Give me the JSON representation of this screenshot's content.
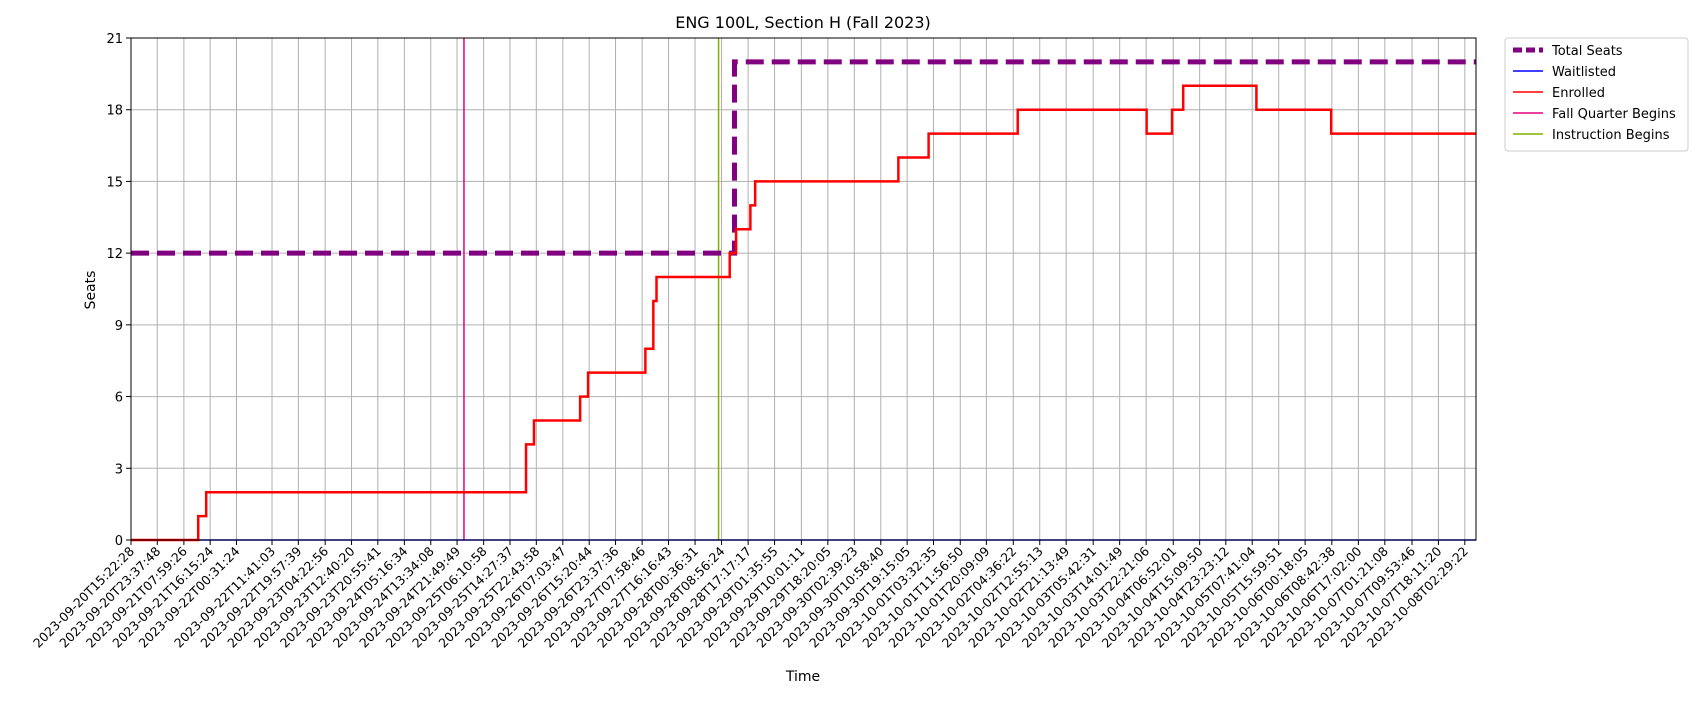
{
  "chart_data": {
    "type": "line",
    "title": "ENG 100L, Section H (Fall 2023)",
    "xlabel": "Time",
    "ylabel": "Seats",
    "ylim": [
      0,
      21
    ],
    "yticks": [
      0,
      3,
      6,
      9,
      12,
      15,
      18,
      21
    ],
    "grid": true,
    "legend_placement": "outside-top-right",
    "x_tick_labels": [
      "2023-09-20T15:22:28",
      "2023-09-20T23:37:48",
      "2023-09-21T07:59:26",
      "2023-09-21T16:15:24",
      "2023-09-22T00:31:24",
      "2023-09-22T11:41:03",
      "2023-09-22T19:57:39",
      "2023-09-23T04:22:56",
      "2023-09-23T12:40:20",
      "2023-09-23T20:55:41",
      "2023-09-24T05:16:34",
      "2023-09-24T13:34:08",
      "2023-09-24T21:49:49",
      "2023-09-25T06:10:58",
      "2023-09-25T14:27:37",
      "2023-09-25T22:43:58",
      "2023-09-26T07:03:47",
      "2023-09-26T15:20:44",
      "2023-09-26T23:37:36",
      "2023-09-27T07:58:46",
      "2023-09-27T16:16:43",
      "2023-09-28T00:36:31",
      "2023-09-28T08:56:24",
      "2023-09-28T17:17:17",
      "2023-09-29T01:35:55",
      "2023-09-29T10:01:11",
      "2023-09-29T18:20:05",
      "2023-09-30T02:39:23",
      "2023-09-30T10:58:40",
      "2023-09-30T19:15:05",
      "2023-10-01T03:32:35",
      "2023-10-01T11:56:50",
      "2023-10-01T20:09:09",
      "2023-10-02T04:36:22",
      "2023-10-02T12:55:13",
      "2023-10-02T21:13:49",
      "2023-10-03T05:42:31",
      "2023-10-03T14:01:49",
      "2023-10-03T22:21:06",
      "2023-10-04T06:52:01",
      "2023-10-04T15:09:50",
      "2023-10-04T23:23:12",
      "2023-10-05T07:41:04",
      "2023-10-05T15:59:51",
      "2023-10-06T00:18:05",
      "2023-10-06T08:42:38",
      "2023-10-06T17:02:00",
      "2023-10-07T01:21:08",
      "2023-10-07T09:53:46",
      "2023-10-07T18:11:20",
      "2023-10-08T02:29:22"
    ],
    "series": [
      {
        "name": "Total Seats",
        "color": "#800080",
        "style": "dashed",
        "points": [
          [
            "2023-09-20T15:22:28",
            12
          ],
          [
            "2023-09-28T13:00:00",
            12
          ],
          [
            "2023-09-28T13:00:00",
            20
          ],
          [
            "2023-10-08T06:00:00",
            20
          ]
        ]
      },
      {
        "name": "Waitlisted",
        "color": "#0000ff",
        "style": "solid",
        "points": [
          [
            "2023-09-20T15:22:28",
            0
          ],
          [
            "2023-10-08T06:00:00",
            0
          ]
        ]
      },
      {
        "name": "Enrolled",
        "color": "#ff0000",
        "style": "solid",
        "points": [
          [
            "2023-09-20T15:22:28",
            0
          ],
          [
            "2023-09-21T12:30:00",
            0
          ],
          [
            "2023-09-21T12:30:00",
            1
          ],
          [
            "2023-09-21T15:00:00",
            1
          ],
          [
            "2023-09-21T15:00:00",
            2
          ],
          [
            "2023-09-25T19:30:00",
            2
          ],
          [
            "2023-09-25T19:30:00",
            4
          ],
          [
            "2023-09-25T22:00:00",
            4
          ],
          [
            "2023-09-25T22:00:00",
            5
          ],
          [
            "2023-09-26T12:30:00",
            5
          ],
          [
            "2023-09-26T12:30:00",
            6
          ],
          [
            "2023-09-26T15:00:00",
            6
          ],
          [
            "2023-09-26T15:00:00",
            7
          ],
          [
            "2023-09-27T09:00:00",
            7
          ],
          [
            "2023-09-27T09:00:00",
            8
          ],
          [
            "2023-09-27T11:30:00",
            8
          ],
          [
            "2023-09-27T11:30:00",
            10
          ],
          [
            "2023-09-27T12:30:00",
            10
          ],
          [
            "2023-09-27T12:30:00",
            11
          ],
          [
            "2023-09-28T11:30:00",
            11
          ],
          [
            "2023-09-28T11:30:00",
            12
          ],
          [
            "2023-09-28T13:30:00",
            12
          ],
          [
            "2023-09-28T13:30:00",
            13
          ],
          [
            "2023-09-28T18:00:00",
            13
          ],
          [
            "2023-09-28T18:00:00",
            14
          ],
          [
            "2023-09-28T19:30:00",
            14
          ],
          [
            "2023-09-28T19:30:00",
            15
          ],
          [
            "2023-09-30T16:30:00",
            15
          ],
          [
            "2023-09-30T16:30:00",
            16
          ],
          [
            "2023-10-01T02:00:00",
            16
          ],
          [
            "2023-10-01T02:00:00",
            17
          ],
          [
            "2023-10-02T06:00:00",
            17
          ],
          [
            "2023-10-02T06:00:00",
            18
          ],
          [
            "2023-10-03T22:30:00",
            18
          ],
          [
            "2023-10-03T22:30:00",
            17
          ],
          [
            "2023-10-04T06:30:00",
            17
          ],
          [
            "2023-10-04T06:30:00",
            18
          ],
          [
            "2023-10-04T10:00:00",
            18
          ],
          [
            "2023-10-04T10:00:00",
            19
          ],
          [
            "2023-10-05T09:00:00",
            19
          ],
          [
            "2023-10-05T09:00:00",
            18
          ],
          [
            "2023-10-06T08:30:00",
            18
          ],
          [
            "2023-10-06T08:30:00",
            17
          ],
          [
            "2023-10-08T06:00:00",
            17
          ]
        ]
      }
    ],
    "vertical_lines": [
      {
        "name": "Fall Quarter Begins",
        "color": "#e6007e",
        "x": "2023-09-25T00:00:00"
      },
      {
        "name": "Instruction Begins",
        "color": "#80b000",
        "x": "2023-09-28T08:00:00"
      }
    ],
    "legend": [
      {
        "label": "Total Seats",
        "color": "#800080",
        "style": "dashed"
      },
      {
        "label": "Waitlisted",
        "color": "#0000ff",
        "style": "solid"
      },
      {
        "label": "Enrolled",
        "color": "#ff0000",
        "style": "solid"
      },
      {
        "label": "Fall Quarter Begins",
        "color": "#e6007e",
        "style": "solid"
      },
      {
        "label": "Instruction Begins",
        "color": "#80b000",
        "style": "solid"
      }
    ]
  }
}
